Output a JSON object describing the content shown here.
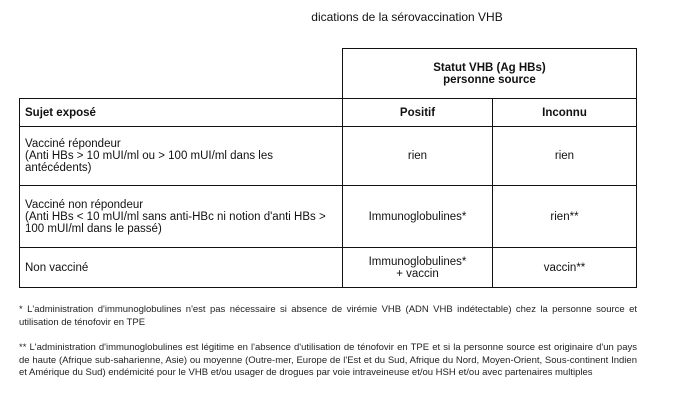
{
  "title": "dications de la sérovaccination VHB",
  "table": {
    "group_header_line1": "Statut VHB (Ag HBs)",
    "group_header_line2": "personne source",
    "headers": [
      "Sujet exposé",
      "Positif",
      "Inconnu"
    ],
    "rows": [
      {
        "subject_line1": "Vacciné répondeur",
        "subject_line2": "(Anti HBs > 10 mUI/ml ou > 100 mUI/ml dans les antécédents)",
        "positif": "rien",
        "inconnu": "rien"
      },
      {
        "subject_line1": "Vacciné non répondeur",
        "subject_line2": "(Anti HBs < 10 mUI/ml sans anti-HBc ni notion d'anti HBs > 100 mUI/ml dans le passé)",
        "positif": "Immunoglobulines*",
        "inconnu": "rien**"
      },
      {
        "subject_line1": "Non vacciné",
        "subject_line2": "",
        "positif": "Immunoglobulines*",
        "positif_line2": "+ vaccin",
        "inconnu": "vaccin**"
      }
    ]
  },
  "footnotes": [
    "* L'administration d'immunoglobulines n'est pas nécessaire si absence de virémie VHB (ADN VHB indétectable) chez la personne source et utilisation de ténofovir en TPE",
    "** L'administration d'immunoglobulines est légitime en l'absence d'utilisation de ténofovir en TPE et si la personne source est originaire d'un pays de haute (Afrique sub-saharienne, Asie) ou moyenne (Outre-mer, Europe de l'Est et du Sud, Afrique du Nord, Moyen-Orient, Sous-continent Indien et Amérique du Sud) endémicité pour le VHB et/ou usager de drogues par voie intraveineuse et/ou HSH et/ou avec partenaires multiples"
  ]
}
